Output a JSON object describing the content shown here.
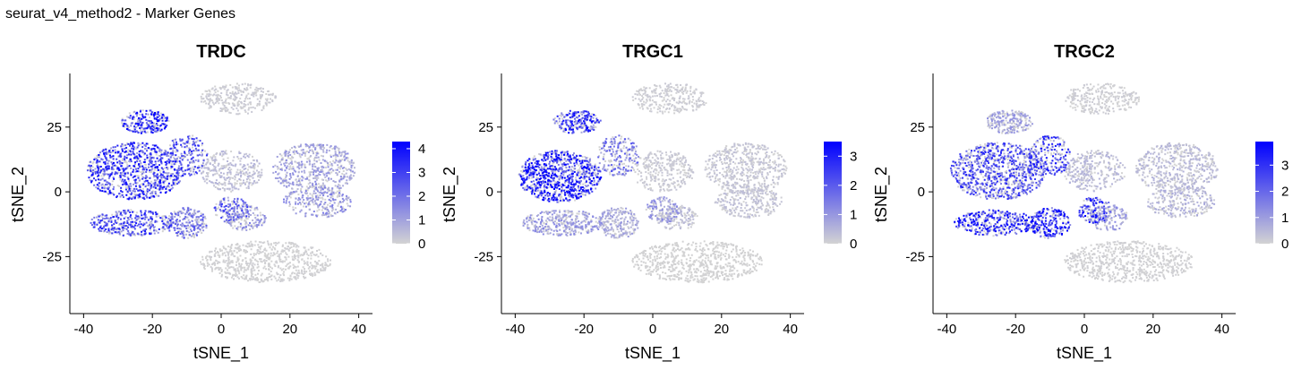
{
  "page_title": "seurat_v4_method2 - Marker Genes",
  "colors": {
    "low": "#d3d3d3",
    "high": "#0000ff",
    "axis": "#000000"
  },
  "chart_data": [
    {
      "type": "scatter",
      "title": "TRDC",
      "xlabel": "tSNE_1",
      "ylabel": "tSNE_2",
      "xlim": [
        -44,
        44
      ],
      "ylim": [
        -47,
        45
      ],
      "xticks": [
        -40,
        -20,
        0,
        20,
        40
      ],
      "yticks": [
        -25,
        0,
        25
      ],
      "legend": {
        "position": "right",
        "min": 0,
        "max": 4.3,
        "ticks": [
          0,
          1,
          2,
          3,
          4
        ]
      },
      "clusters": [
        {
          "cx": -22,
          "cy": 27,
          "rx": 7,
          "ry": 4.5,
          "n": 220,
          "expr": 2.9
        },
        {
          "cx": -25,
          "cy": 8,
          "rx": 14,
          "ry": 11,
          "n": 900,
          "expr": 2.7
        },
        {
          "cx": -10,
          "cy": 14,
          "rx": 6,
          "ry": 8,
          "n": 200,
          "expr": 2.2
        },
        {
          "cx": -26,
          "cy": -12,
          "rx": 12,
          "ry": 5,
          "n": 350,
          "expr": 2.3
        },
        {
          "cx": -10,
          "cy": -12,
          "rx": 6,
          "ry": 6,
          "n": 220,
          "expr": 1.6
        },
        {
          "cx": 3,
          "cy": -7,
          "rx": 5,
          "ry": 5,
          "n": 130,
          "expr": 2.0
        },
        {
          "cx": 27,
          "cy": 9,
          "rx": 12,
          "ry": 10,
          "n": 520,
          "expr": 0.9
        },
        {
          "cx": 28,
          "cy": -4,
          "rx": 10,
          "ry": 6,
          "n": 250,
          "expr": 1.1
        },
        {
          "cx": 5,
          "cy": 36,
          "rx": 11,
          "ry": 6,
          "n": 280,
          "expr": 0.15
        },
        {
          "cx": 3,
          "cy": 8,
          "rx": 9,
          "ry": 8,
          "n": 300,
          "expr": 0.4
        },
        {
          "cx": 13,
          "cy": -27,
          "rx": 19,
          "ry": 8,
          "n": 650,
          "expr": 0.05
        },
        {
          "cx": 7,
          "cy": -10,
          "rx": 6,
          "ry": 5,
          "n": 140,
          "expr": 1.1
        }
      ]
    },
    {
      "type": "scatter",
      "title": "TRGC1",
      "xlabel": "tSNE_1",
      "ylabel": "tSNE_2",
      "xlim": [
        -44,
        44
      ],
      "ylim": [
        -47,
        45
      ],
      "xticks": [
        -40,
        -20,
        0,
        20,
        40
      ],
      "yticks": [
        -25,
        0,
        25
      ],
      "legend": {
        "position": "right",
        "min": 0,
        "max": 3.5,
        "ticks": [
          0,
          1,
          2,
          3
        ]
      },
      "clusters": [
        {
          "cx": -22,
          "cy": 27,
          "rx": 7,
          "ry": 4.5,
          "n": 220,
          "expr": 2.2
        },
        {
          "cx": -27,
          "cy": 6,
          "rx": 12,
          "ry": 10,
          "n": 900,
          "expr": 2.4
        },
        {
          "cx": -10,
          "cy": 14,
          "rx": 6,
          "ry": 8,
          "n": 200,
          "expr": 1.3
        },
        {
          "cx": -26,
          "cy": -12,
          "rx": 12,
          "ry": 5,
          "n": 350,
          "expr": 0.8
        },
        {
          "cx": -10,
          "cy": -12,
          "rx": 6,
          "ry": 6,
          "n": 220,
          "expr": 0.6
        },
        {
          "cx": 3,
          "cy": -7,
          "rx": 5,
          "ry": 5,
          "n": 130,
          "expr": 0.8
        },
        {
          "cx": 27,
          "cy": 9,
          "rx": 12,
          "ry": 10,
          "n": 520,
          "expr": 0.2
        },
        {
          "cx": 28,
          "cy": -4,
          "rx": 10,
          "ry": 6,
          "n": 250,
          "expr": 0.25
        },
        {
          "cx": 5,
          "cy": 36,
          "rx": 11,
          "ry": 6,
          "n": 280,
          "expr": 0.1
        },
        {
          "cx": 3,
          "cy": 8,
          "rx": 9,
          "ry": 8,
          "n": 300,
          "expr": 0.15
        },
        {
          "cx": 13,
          "cy": -27,
          "rx": 19,
          "ry": 8,
          "n": 650,
          "expr": 0.02
        },
        {
          "cx": 7,
          "cy": -10,
          "rx": 6,
          "ry": 5,
          "n": 140,
          "expr": 0.3
        }
      ]
    },
    {
      "type": "scatter",
      "title": "TRGC2",
      "xlabel": "tSNE_1",
      "ylabel": "tSNE_2",
      "xlim": [
        -44,
        44
      ],
      "ylim": [
        -47,
        45
      ],
      "xticks": [
        -40,
        -20,
        0,
        20,
        40
      ],
      "yticks": [
        -25,
        0,
        25
      ],
      "legend": {
        "position": "right",
        "min": 0,
        "max": 3.9,
        "ticks": [
          0,
          1,
          2,
          3
        ]
      },
      "clusters": [
        {
          "cx": -22,
          "cy": 27,
          "rx": 7,
          "ry": 4.5,
          "n": 220,
          "expr": 0.8
        },
        {
          "cx": -25,
          "cy": 8,
          "rx": 14,
          "ry": 11,
          "n": 900,
          "expr": 2.0
        },
        {
          "cx": -10,
          "cy": 14,
          "rx": 6,
          "ry": 8,
          "n": 200,
          "expr": 2.3
        },
        {
          "cx": -26,
          "cy": -12,
          "rx": 12,
          "ry": 5,
          "n": 350,
          "expr": 2.7
        },
        {
          "cx": -10,
          "cy": -12,
          "rx": 6,
          "ry": 6,
          "n": 220,
          "expr": 2.6
        },
        {
          "cx": 3,
          "cy": -7,
          "rx": 5,
          "ry": 5,
          "n": 130,
          "expr": 2.4
        },
        {
          "cx": 27,
          "cy": 9,
          "rx": 12,
          "ry": 10,
          "n": 520,
          "expr": 0.4
        },
        {
          "cx": 28,
          "cy": -4,
          "rx": 10,
          "ry": 6,
          "n": 250,
          "expr": 0.5
        },
        {
          "cx": 5,
          "cy": 36,
          "rx": 11,
          "ry": 6,
          "n": 280,
          "expr": 0.1
        },
        {
          "cx": 3,
          "cy": 8,
          "rx": 9,
          "ry": 8,
          "n": 300,
          "expr": 0.4
        },
        {
          "cx": 13,
          "cy": -27,
          "rx": 19,
          "ry": 8,
          "n": 650,
          "expr": 0.05
        },
        {
          "cx": 7,
          "cy": -10,
          "rx": 6,
          "ry": 5,
          "n": 140,
          "expr": 0.9
        }
      ]
    }
  ]
}
